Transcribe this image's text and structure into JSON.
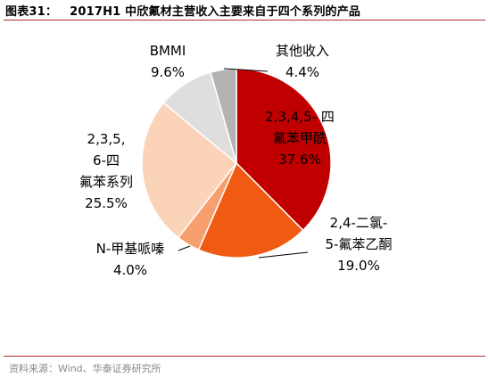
{
  "title": {
    "number": "图表31：",
    "text": "2017H1 中欣氟材主营收入主要来自于四个系列的产品"
  },
  "source": "资料来源：Wind、华泰证券研究所",
  "chart_data": {
    "type": "pie",
    "slices": [
      {
        "label_lines": [
          "2,3,4,5- 四",
          "氟苯甲酰"
        ],
        "value": 37.6,
        "value_label": "37.6%",
        "color": "#c00000"
      },
      {
        "label_lines": [
          "2,4-二氯-",
          "5-氟苯乙酮"
        ],
        "value": 19.0,
        "value_label": "19.0%",
        "color": "#f05a13"
      },
      {
        "label_lines": [
          "N-甲基哌嗪"
        ],
        "value": 4.0,
        "value_label": "4.0%",
        "color": "#f7a06e"
      },
      {
        "label_lines": [
          "2,3,5,",
          "6-四",
          "氟苯系列"
        ],
        "value": 25.5,
        "value_label": "25.5%",
        "color": "#fbd3b9"
      },
      {
        "label_lines": [
          "BMMI"
        ],
        "value": 9.6,
        "value_label": "9.6%",
        "color": "#dedede"
      },
      {
        "label_lines": [
          "其他收入"
        ],
        "value": 4.4,
        "value_label": "4.4%",
        "color": "#b3b3b3"
      }
    ]
  }
}
